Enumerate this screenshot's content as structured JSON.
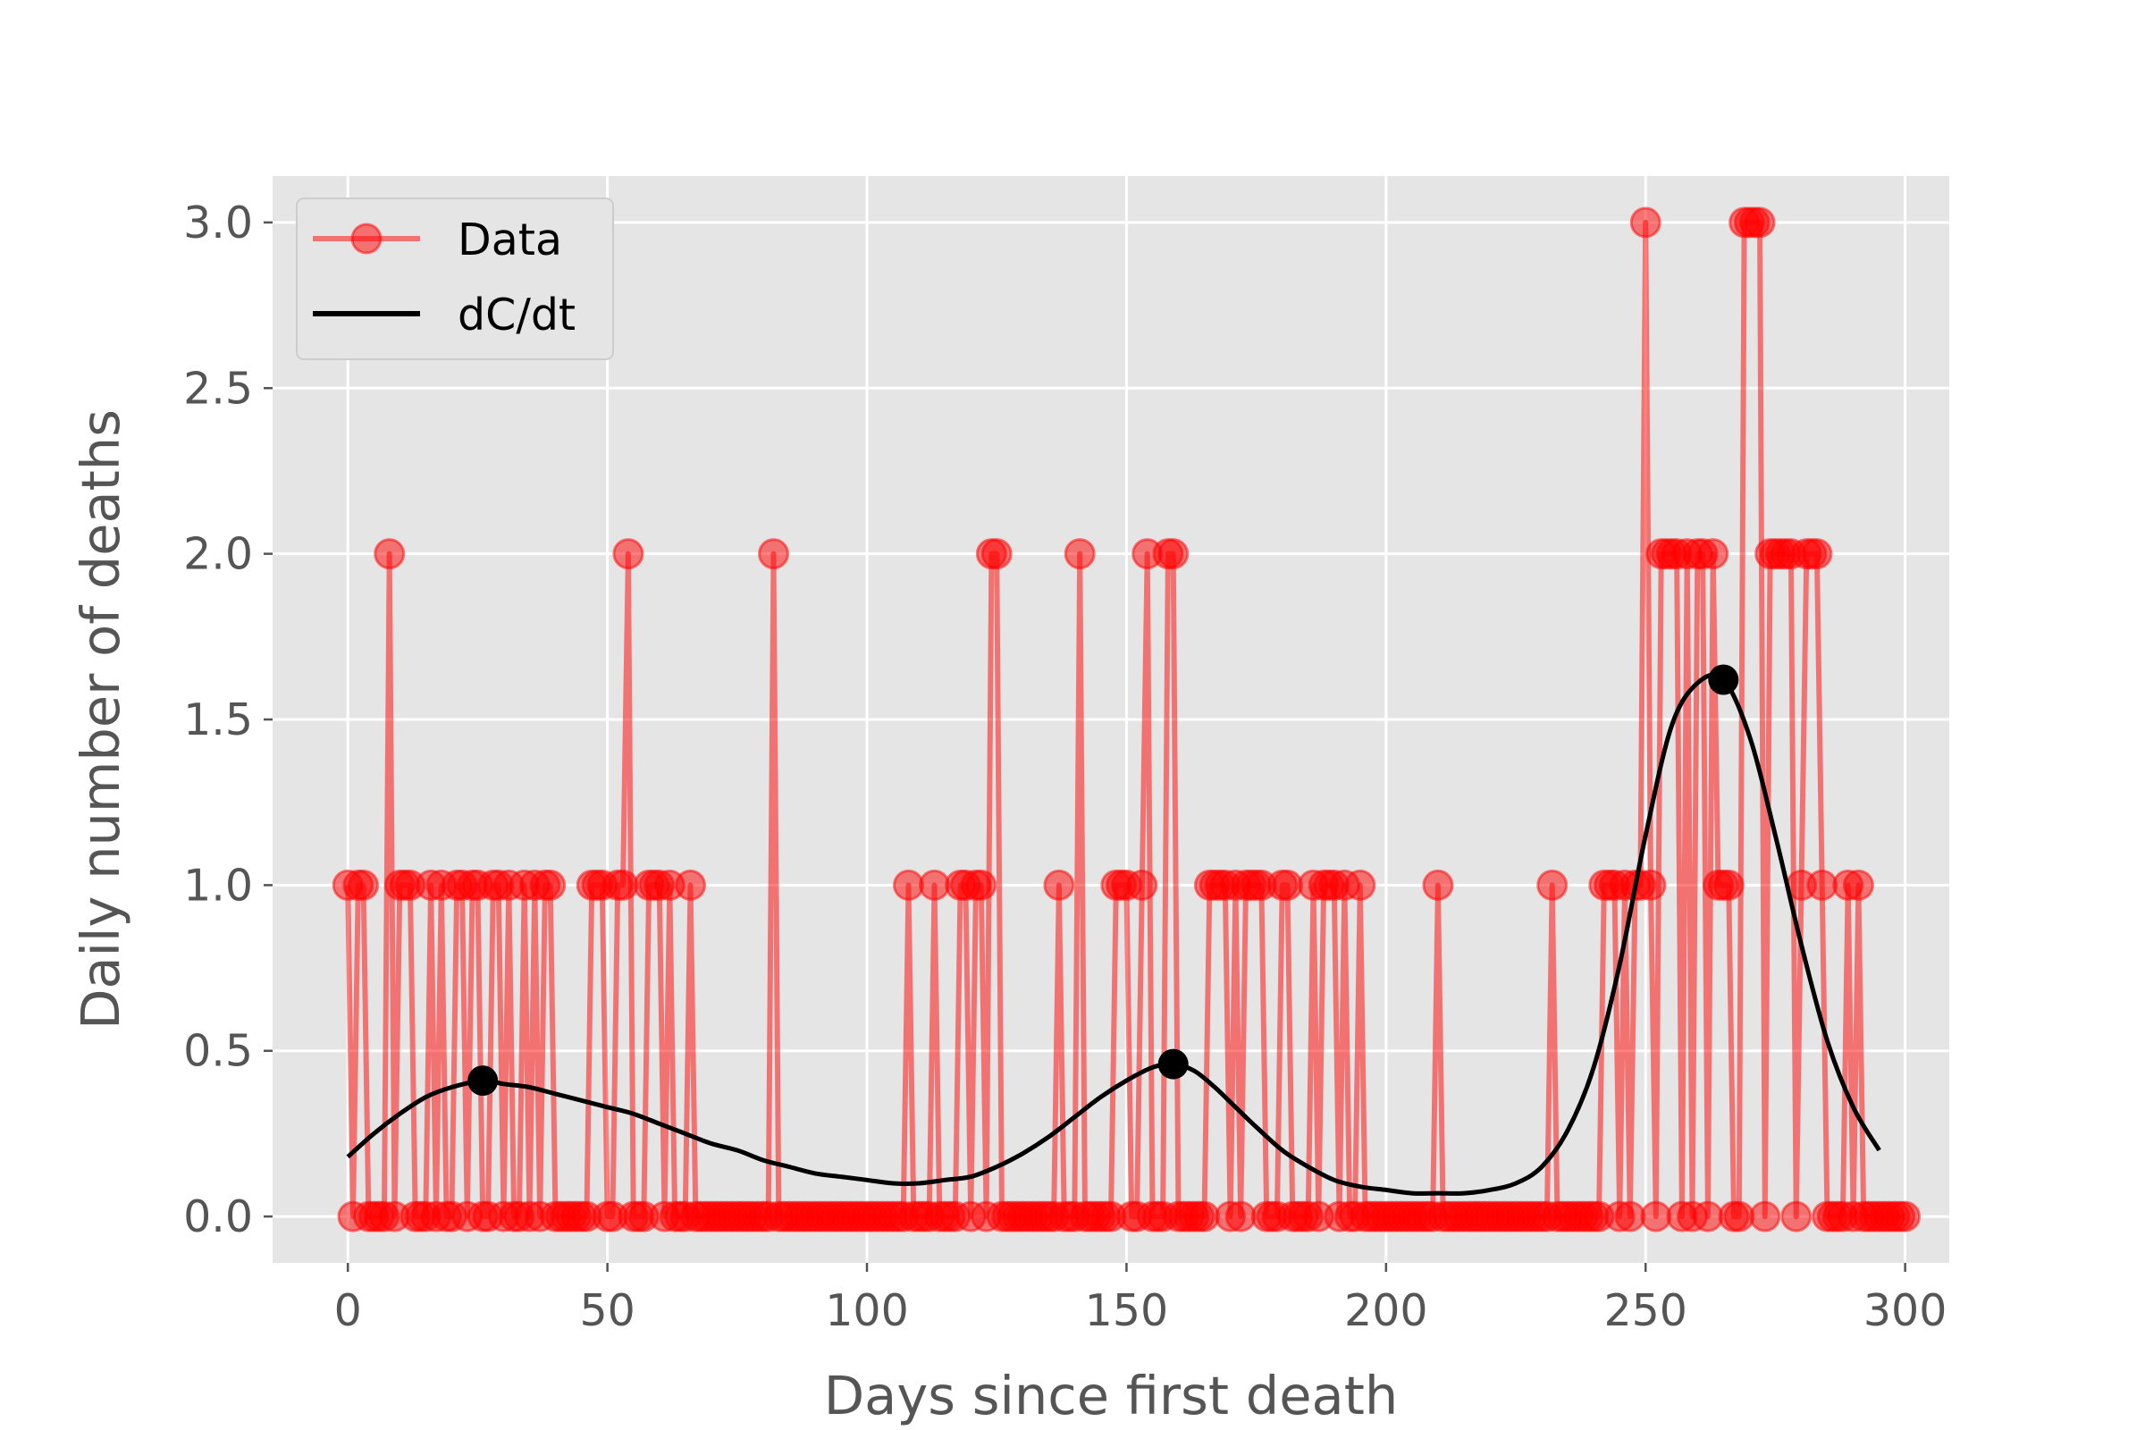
{
  "chart_data": {
    "type": "line",
    "title": "",
    "xlabel": "Days since first death",
    "ylabel": "Daily number of deaths",
    "xlim": [
      -14.5,
      308.5
    ],
    "ylim": [
      -0.14,
      3.14
    ],
    "xticks": [
      0,
      50,
      100,
      150,
      200,
      250,
      300
    ],
    "xtick_labels": [
      "0",
      "50",
      "100",
      "150",
      "200",
      "250",
      "300"
    ],
    "yticks": [
      0.0,
      0.5,
      1.0,
      1.5,
      2.0,
      2.5,
      3.0
    ],
    "ytick_labels": [
      "0.0",
      "0.5",
      "1.0",
      "1.5",
      "2.0",
      "2.5",
      "3.0"
    ],
    "grid": true,
    "legend": "top-left",
    "background": "#e5e5e5",
    "series": [
      {
        "name": "Data",
        "style": "line-marker",
        "color": "#ff0000",
        "x_start": 0,
        "values": [
          1,
          0,
          1,
          1,
          0,
          0,
          0,
          0,
          2,
          0,
          1,
          1,
          1,
          0,
          0,
          0,
          1,
          0,
          1,
          0,
          0,
          1,
          1,
          0,
          1,
          1,
          0,
          0,
          1,
          1,
          0,
          1,
          0,
          0,
          1,
          0,
          1,
          0,
          1,
          1,
          0,
          0,
          0,
          0,
          0,
          0,
          0,
          1,
          1,
          1,
          0,
          0,
          1,
          1,
          2,
          0,
          0,
          0,
          1,
          1,
          1,
          0,
          1,
          0,
          0,
          0,
          1,
          0,
          0,
          0,
          0,
          0,
          0,
          0,
          0,
          0,
          0,
          0,
          0,
          0,
          0,
          0,
          2,
          0,
          0,
          0,
          0,
          0,
          0,
          0,
          0,
          0,
          0,
          0,
          0,
          0,
          0,
          0,
          0,
          0,
          0,
          0,
          0,
          0,
          0,
          0,
          0,
          0,
          1,
          0,
          0,
          0,
          0,
          1,
          0,
          0,
          0,
          0,
          1,
          1,
          0,
          1,
          1,
          0,
          2,
          2,
          0,
          0,
          0,
          0,
          0,
          0,
          0,
          0,
          0,
          0,
          0,
          1,
          0,
          0,
          0,
          2,
          0,
          0,
          0,
          0,
          0,
          0,
          1,
          1,
          1,
          0,
          0,
          1,
          2,
          0,
          0,
          0,
          2,
          2,
          0,
          0,
          0,
          0,
          0,
          0,
          1,
          1,
          1,
          1,
          0,
          1,
          0,
          1,
          1,
          1,
          1,
          0,
          0,
          0,
          1,
          1,
          0,
          0,
          0,
          0,
          1,
          0,
          1,
          1,
          1,
          0,
          1,
          0,
          0,
          1,
          0,
          0,
          0,
          0,
          0,
          0,
          0,
          0,
          0,
          0,
          0,
          0,
          0,
          0,
          1,
          0,
          0,
          0,
          0,
          0,
          0,
          0,
          0,
          0,
          0,
          0,
          0,
          0,
          0,
          0,
          0,
          0,
          0,
          0,
          0,
          0,
          1,
          0,
          0,
          0,
          0,
          0,
          0,
          0,
          0,
          0,
          1,
          1,
          1,
          0,
          1,
          0,
          1,
          1,
          3,
          1,
          0,
          2,
          2,
          2,
          2,
          0,
          2,
          0,
          2,
          2,
          0,
          2,
          1,
          1,
          1,
          0,
          0,
          3,
          3,
          3,
          3,
          0,
          2,
          2,
          2,
          2,
          2,
          0,
          1,
          2,
          2,
          2,
          1,
          0,
          0,
          0,
          0,
          1,
          0,
          1,
          0,
          0,
          0,
          0,
          0,
          0,
          0,
          0,
          0
        ]
      },
      {
        "name": "dC/dt",
        "style": "line",
        "color": "#000000",
        "x": [
          0,
          5,
          10,
          15,
          20,
          26,
          30,
          35,
          40,
          45,
          50,
          55,
          60,
          65,
          70,
          75,
          80,
          85,
          90,
          95,
          100,
          105,
          110,
          115,
          120,
          125,
          130,
          135,
          140,
          145,
          150,
          155,
          159,
          163,
          167,
          171,
          175,
          180,
          185,
          190,
          195,
          200,
          205,
          210,
          215,
          220,
          225,
          230,
          235,
          240,
          245,
          250,
          255,
          260,
          265,
          270,
          275,
          280,
          285,
          290,
          295
        ],
        "y": [
          0.18,
          0.25,
          0.31,
          0.36,
          0.39,
          0.41,
          0.4,
          0.39,
          0.37,
          0.35,
          0.33,
          0.31,
          0.28,
          0.25,
          0.22,
          0.2,
          0.17,
          0.15,
          0.13,
          0.12,
          0.11,
          0.1,
          0.1,
          0.11,
          0.12,
          0.15,
          0.19,
          0.24,
          0.3,
          0.36,
          0.41,
          0.45,
          0.46,
          0.44,
          0.39,
          0.33,
          0.27,
          0.2,
          0.15,
          0.11,
          0.09,
          0.08,
          0.07,
          0.07,
          0.07,
          0.08,
          0.1,
          0.15,
          0.26,
          0.45,
          0.76,
          1.15,
          1.48,
          1.61,
          1.62,
          1.45,
          1.15,
          0.82,
          0.53,
          0.33,
          0.2
        ]
      },
      {
        "name": "peaks",
        "style": "marker",
        "color": "#000000",
        "x": [
          26,
          159,
          265
        ],
        "y": [
          0.41,
          0.46,
          1.62
        ]
      }
    ],
    "legend_entries": [
      "Data",
      "dC/dt"
    ]
  }
}
